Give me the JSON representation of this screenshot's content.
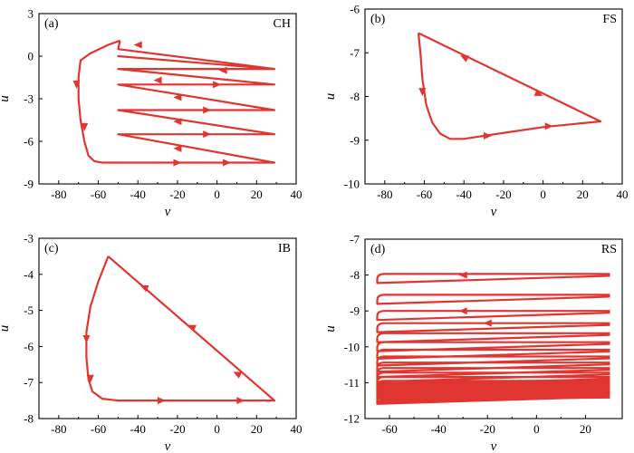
{
  "chart_data": [
    {
      "type": "line",
      "panel_label": "(a)",
      "title": "CH",
      "xlabel": "v",
      "ylabel": "u",
      "xlim": [
        -90,
        40
      ],
      "ylim": [
        -9,
        3
      ],
      "xticks": [
        -80,
        -60,
        -40,
        -20,
        0,
        20,
        40
      ],
      "yticks": [
        -9,
        -6,
        -3,
        0,
        3
      ],
      "series": [
        {
          "x": [
            -49,
            -55,
            -64,
            -69,
            -70,
            -70,
            -69,
            -67,
            -65,
            -62,
            -58,
            -50,
            -35,
            0,
            29,
            -50,
            29,
            -50,
            29,
            -50,
            29,
            -50,
            29,
            -50,
            29,
            -50,
            -49
          ],
          "y": [
            1.1,
            0.8,
            0.2,
            -0.3,
            -1.5,
            -3.0,
            -4.5,
            -6.0,
            -7.0,
            -7.4,
            -7.5,
            -7.5,
            -7.5,
            -7.5,
            -7.5,
            -5.5,
            -5.5,
            -3.8,
            -3.8,
            -2.0,
            -2.0,
            -0.9,
            -0.9,
            0.0,
            -0.9,
            0.5,
            1.1
          ]
        }
      ],
      "arrows": [
        {
          "x": -71,
          "y": -2.0,
          "dir": "down"
        },
        {
          "x": -67,
          "y": -5.0,
          "dir": "down"
        },
        {
          "x": -20,
          "y": -7.5,
          "dir": "right"
        },
        {
          "x": 5,
          "y": -7.5,
          "dir": "right"
        },
        {
          "x": -20,
          "y": -6.5,
          "dir": "left"
        },
        {
          "x": -5,
          "y": -5.5,
          "dir": "right"
        },
        {
          "x": -20,
          "y": -4.6,
          "dir": "left"
        },
        {
          "x": -5,
          "y": -3.8,
          "dir": "right"
        },
        {
          "x": -20,
          "y": -2.9,
          "dir": "left"
        },
        {
          "x": 0,
          "y": -2.0,
          "dir": "right"
        },
        {
          "x": -30,
          "y": -1.7,
          "dir": "left"
        },
        {
          "x": 3,
          "y": -1.0,
          "dir": "left"
        },
        {
          "x": -40,
          "y": 0.8,
          "dir": "left"
        }
      ]
    },
    {
      "type": "line",
      "panel_label": "(b)",
      "title": "FS",
      "xlabel": "v",
      "ylabel": "u",
      "xlim": [
        -90,
        40
      ],
      "ylim": [
        -10,
        -6
      ],
      "xticks": [
        -80,
        -60,
        -40,
        -20,
        0,
        20,
        40
      ],
      "yticks": [
        -10,
        -9,
        -8,
        -7,
        -6
      ],
      "series": [
        {
          "x": [
            -63,
            -62,
            -61,
            -59,
            -56,
            -52,
            -47,
            -40,
            -30,
            -15,
            0,
            29,
            -63
          ],
          "y": [
            -6.55,
            -7.0,
            -7.6,
            -8.2,
            -8.6,
            -8.85,
            -8.97,
            -8.97,
            -8.9,
            -8.8,
            -8.7,
            -8.57,
            -6.55
          ]
        }
      ],
      "arrows": [
        {
          "x": -61,
          "y": -7.9,
          "dir": "down"
        },
        {
          "x": -28,
          "y": -8.9,
          "dir": "right"
        },
        {
          "x": 3,
          "y": -8.68,
          "dir": "right"
        },
        {
          "x": -2,
          "y": -7.95,
          "dir": "downright"
        },
        {
          "x": -40,
          "y": -7.1,
          "dir": "upleft"
        }
      ]
    },
    {
      "type": "line",
      "panel_label": "(c)",
      "title": "IB",
      "xlabel": "v",
      "ylabel": "u",
      "xlim": [
        -90,
        40
      ],
      "ylim": [
        -8,
        -3
      ],
      "xticks": [
        -80,
        -60,
        -40,
        -20,
        0,
        20,
        40
      ],
      "yticks": [
        -8,
        -7,
        -6,
        -5,
        -4,
        -3
      ],
      "series": [
        {
          "x": [
            -55,
            -60,
            -64,
            -66,
            -66,
            -65,
            -63,
            -58,
            -50,
            -30,
            -10,
            29,
            -55
          ],
          "y": [
            -3.5,
            -4.2,
            -4.9,
            -5.6,
            -6.3,
            -6.9,
            -7.25,
            -7.45,
            -7.5,
            -7.5,
            -7.5,
            -7.5,
            -3.5
          ]
        }
      ],
      "arrows": [
        {
          "x": -66,
          "y": -5.8,
          "dir": "down"
        },
        {
          "x": -64,
          "y": -6.9,
          "dir": "down"
        },
        {
          "x": -28,
          "y": -7.5,
          "dir": "right"
        },
        {
          "x": 12,
          "y": -7.5,
          "dir": "right"
        },
        {
          "x": 10,
          "y": -6.75,
          "dir": "upleft"
        },
        {
          "x": -13,
          "y": -5.45,
          "dir": "upleft"
        },
        {
          "x": -37,
          "y": -4.35,
          "dir": "upleft"
        }
      ]
    },
    {
      "type": "line",
      "panel_label": "(d)",
      "title": "RS",
      "xlabel": "v",
      "ylabel": "u",
      "xlim": [
        -70,
        35
      ],
      "ylim": [
        -12,
        -7
      ],
      "xticks": [
        -60,
        -40,
        -20,
        0,
        20
      ],
      "yticks": [
        -12,
        -11,
        -10,
        -9,
        -8,
        -7
      ],
      "series": [
        {
          "cycle_levels_u": [
            -7.97,
            -8.55,
            -9.0,
            -9.34,
            -9.62,
            -9.87,
            -10.08,
            -10.27,
            -10.44,
            -10.59,
            -10.72,
            -10.84,
            -10.95,
            -11.04,
            -11.12,
            -11.19,
            -11.25,
            -11.3,
            -11.34
          ],
          "v_range": [
            -65,
            30
          ]
        }
      ],
      "arrows": [
        {
          "x": -30,
          "y": -8.0,
          "dir": "left"
        },
        {
          "x": -30,
          "y": -9.0,
          "dir": "left"
        },
        {
          "x": -20,
          "y": -9.34,
          "dir": "left"
        }
      ]
    }
  ]
}
